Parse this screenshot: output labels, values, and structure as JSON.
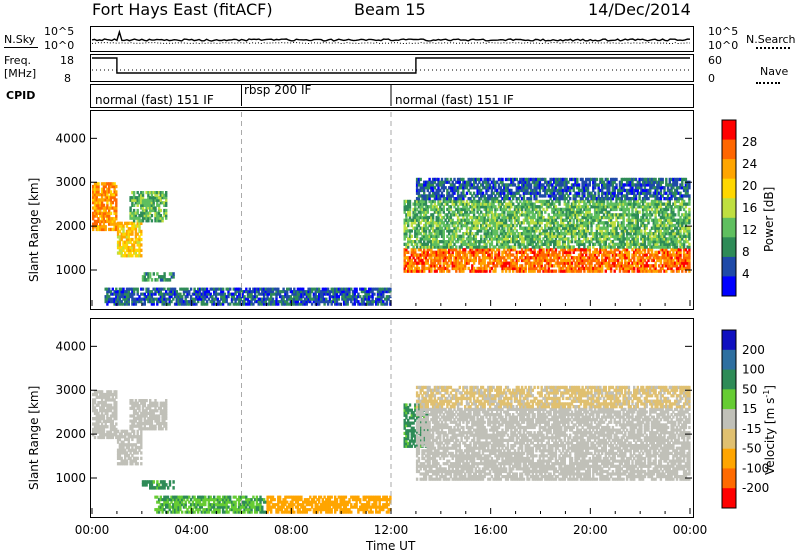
{
  "header": {
    "station": "Fort Hays East (fitACF)",
    "beam": "Beam 15",
    "date": "14/Dec/2014"
  },
  "panels": {
    "nsky": {
      "label": "N.Sky",
      "left_ticks": [
        "10^5",
        "10^0"
      ],
      "right_ticks": [
        "10^5",
        "10^0"
      ],
      "right_label": "N.Search"
    },
    "freq": {
      "label_line1": "Freq.",
      "label_line2": "[MHz]",
      "left_ticks": [
        "18",
        "8"
      ],
      "right_ticks": [
        "60",
        "0"
      ],
      "right_label": "Nave"
    },
    "cpid": {
      "label": "CPID",
      "segments": [
        {
          "label": "normal (fast) 151 IF",
          "start_hour": 0,
          "end_hour": 6
        },
        {
          "label": "rbsp 200 IF",
          "start_hour": 6,
          "end_hour": 12
        },
        {
          "label": "normal (fast) 151 IF",
          "start_hour": 12,
          "end_hour": 24
        }
      ]
    }
  },
  "colorbars": {
    "power": {
      "label": "Power [dB]",
      "ticks": [
        "28",
        "24",
        "20",
        "16",
        "12",
        "8",
        "4"
      ]
    },
    "velocity": {
      "label": "Velocity [m s",
      "label_sup": "-1",
      "label_end": "]",
      "ticks": [
        "200",
        "100",
        "50",
        "15",
        "-15",
        "-50",
        "-100",
        "-200"
      ]
    }
  },
  "chart_data": [
    {
      "type": "heatmap",
      "name": "power",
      "ylabel": "Slant Range [km]",
      "xlabel": "",
      "x_range_hours": [
        0,
        24
      ],
      "ylim": [
        180,
        4600
      ],
      "yticks": [
        1000,
        2000,
        3000,
        4000
      ],
      "xtick_labels": [
        "00:00",
        "04:00",
        "08:00",
        "12:00",
        "16:00",
        "20:00",
        "00:00"
      ],
      "colorbar_range": [
        0,
        32
      ],
      "colors": [
        "#0000ff",
        "#1f4aa8",
        "#2e8b57",
        "#5fbf5f",
        "#bfdf40",
        "#ffd700",
        "#ffa500",
        "#ff6600",
        "#ff0000"
      ],
      "regions": [
        {
          "t": [
            0.0,
            1.0
          ],
          "r": [
            1900,
            3000
          ],
          "v": 24
        },
        {
          "t": [
            1.0,
            2.0
          ],
          "r": [
            1300,
            2100
          ],
          "v": 20
        },
        {
          "t": [
            1.5,
            3.0
          ],
          "r": [
            2100,
            2800
          ],
          "v": 12
        },
        {
          "t": [
            2.0,
            3.3
          ],
          "r": [
            750,
            950
          ],
          "v": 10
        },
        {
          "t": [
            0.5,
            12.0
          ],
          "r": [
            200,
            600
          ],
          "v": 6
        },
        {
          "t": [
            12.5,
            24.0
          ],
          "r": [
            950,
            1500
          ],
          "v": 26
        },
        {
          "t": [
            12.5,
            24.0
          ],
          "r": [
            1500,
            2600
          ],
          "v": 12
        },
        {
          "t": [
            13.0,
            24.0
          ],
          "r": [
            2600,
            3100
          ],
          "v": 6
        }
      ]
    },
    {
      "type": "heatmap",
      "name": "velocity",
      "ylabel": "Slant Range [km]",
      "xlabel": "Time UT",
      "x_range_hours": [
        0,
        24
      ],
      "ylim": [
        180,
        4600
      ],
      "yticks": [
        1000,
        2000,
        3000,
        4000
      ],
      "xtick_labels": [
        "00:00",
        "04:00",
        "08:00",
        "12:00",
        "16:00",
        "20:00",
        "00:00"
      ],
      "colorbar_range": [
        -250,
        250
      ],
      "regions": [
        {
          "t": [
            0.0,
            1.0
          ],
          "r": [
            1900,
            3000
          ],
          "v": 0
        },
        {
          "t": [
            1.0,
            2.0
          ],
          "r": [
            1300,
            2100
          ],
          "v": 0
        },
        {
          "t": [
            1.5,
            3.0
          ],
          "r": [
            2100,
            2800
          ],
          "v": 0
        },
        {
          "t": [
            2.0,
            3.3
          ],
          "r": [
            750,
            950
          ],
          "v": 40
        },
        {
          "t": [
            2.5,
            7.0
          ],
          "r": [
            200,
            600
          ],
          "v": 30
        },
        {
          "t": [
            7.0,
            12.0
          ],
          "r": [
            200,
            600
          ],
          "v": -60
        },
        {
          "t": [
            12.5,
            13.5
          ],
          "r": [
            1700,
            2700
          ],
          "v": 40
        },
        {
          "t": [
            13.0,
            24.0
          ],
          "r": [
            950,
            2600
          ],
          "v": 0
        },
        {
          "t": [
            13.0,
            24.0
          ],
          "r": [
            2600,
            3100
          ],
          "v": -20
        }
      ]
    }
  ]
}
